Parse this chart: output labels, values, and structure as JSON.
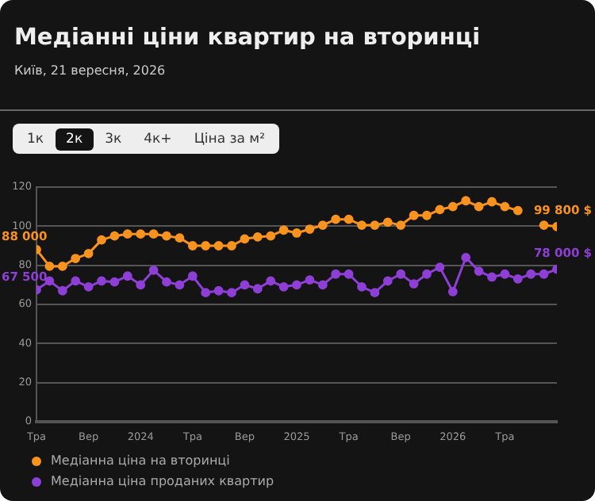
{
  "chart_data": {
    "type": "line",
    "title": "Медіанні ціни квартир на вторинці",
    "subtitle": "Київ, 21 вересня, 2026",
    "annotations": [
      "1к",
      "2к",
      "3к",
      "4к+",
      "Ціна за м²",
      {
        "text": "88 000",
        "x": "2023-05",
        "y": 88
      },
      {
        "text": "99 800 $",
        "x": "2026-09",
        "y": 99.8
      },
      {
        "text": "67 500",
        "x": "2023-05",
        "y": 67.5
      },
      {
        "text": "78 000 $",
        "x": "2026-09",
        "y": 78
      }
    ],
    "x": [
      "2023-05",
      "2023-06",
      "2023-07",
      "2023-08",
      "2023-09",
      "2023-10",
      "2023-11",
      "2023-12",
      "2024-01",
      "2024-02",
      "2024-03",
      "2024-04",
      "2024-05",
      "2024-06",
      "2024-07",
      "2024-08",
      "2024-09",
      "2024-10",
      "2024-11",
      "2024-12",
      "2025-01",
      "2025-02",
      "2025-03",
      "2025-04",
      "2025-05",
      "2025-06",
      "2025-07",
      "2025-08",
      "2025-09",
      "2025-10",
      "2025-11",
      "2025-12",
      "2026-01",
      "2026-02",
      "2026-03",
      "2026-04",
      "2026-05",
      "2026-06",
      "2026-07",
      "2026-08",
      "2026-09"
    ],
    "series": [
      {
        "name": "Медіанна ціна на вторинці",
        "color": "#f7931e",
        "values": [
          88,
          79.5,
          79.5,
          83.5,
          86,
          93,
          95,
          96,
          96,
          96,
          95,
          94,
          90,
          90,
          90,
          90,
          93.5,
          94.5,
          95,
          98,
          96.5,
          98.5,
          100.5,
          103.5,
          103.5,
          100.5,
          100.5,
          102,
          100.5,
          105.5,
          105.5,
          108.5,
          110,
          113,
          110,
          112.5,
          110,
          108,
          null,
          100.5,
          99.8
        ]
      },
      {
        "name": "Медіанна ціна проданих квартир",
        "color": "#8e3fd6",
        "values": [
          67.5,
          72,
          67,
          72,
          69,
          72,
          71.5,
          74.5,
          70,
          77.5,
          71.5,
          70,
          74.5,
          66,
          67,
          66,
          70,
          68,
          72,
          69,
          70,
          72.5,
          70,
          75.5,
          75.5,
          69,
          66,
          72,
          75.5,
          70.5,
          75.5,
          79,
          66.5,
          84,
          77,
          74,
          75.5,
          73,
          75.5,
          75.5,
          78
        ]
      }
    ],
    "xlim": [
      "2023-05",
      "2026-09"
    ],
    "xticks": [
      {
        "value": "2023-05",
        "label": "Тра"
      },
      {
        "value": "2023-09",
        "label": "Вер"
      },
      {
        "value": "2024-01",
        "label": "2024"
      },
      {
        "value": "2024-05",
        "label": "Тра"
      },
      {
        "value": "2024-09",
        "label": "Вер"
      },
      {
        "value": "2025-01",
        "label": "2025"
      },
      {
        "value": "2025-05",
        "label": "Тра"
      },
      {
        "value": "2025-09",
        "label": "Вер"
      },
      {
        "value": "2026-01",
        "label": "2026"
      },
      {
        "value": "2026-05",
        "label": "Тра"
      }
    ],
    "ylim": [
      0,
      120
    ],
    "yticks": [
      0,
      20,
      40,
      60,
      80,
      100,
      120
    ],
    "grid": "y",
    "legend": "bottom",
    "marker": "circle",
    "line_style": "solid"
  }
}
